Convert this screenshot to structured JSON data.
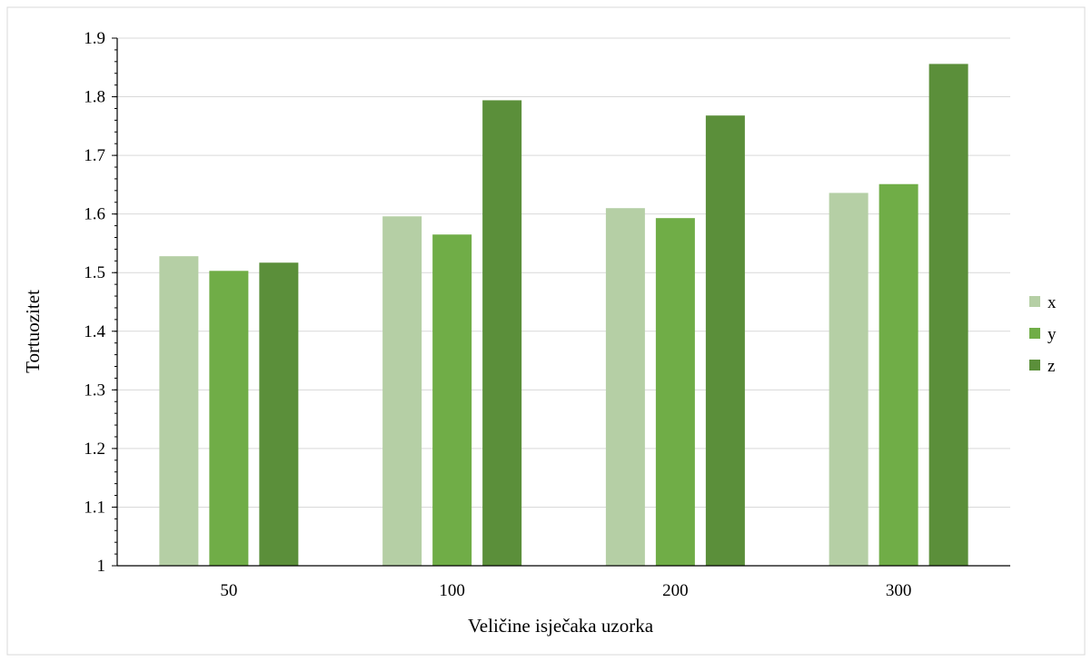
{
  "chart_data": {
    "type": "bar",
    "title": "",
    "xlabel": "Veličine isječaka uzorka",
    "ylabel": "Tortuozitet",
    "categories": [
      "50",
      "100",
      "200",
      "300"
    ],
    "series": [
      {
        "name": "x",
        "values": [
          1.528,
          1.596,
          1.61,
          1.636
        ],
        "color": "#b5cfa5"
      },
      {
        "name": "y",
        "values": [
          1.503,
          1.565,
          1.593,
          1.651
        ],
        "color": "#70ad47"
      },
      {
        "name": "z",
        "values": [
          1.517,
          1.794,
          1.768,
          1.856
        ],
        "color": "#5b8f3a"
      }
    ],
    "ylim": [
      1,
      1.9
    ],
    "yticks": [
      "1",
      "1.1",
      "1.2",
      "1.3",
      "1.4",
      "1.5",
      "1.6",
      "1.7",
      "1.8",
      "1.9"
    ],
    "grid": true,
    "legend_position": "right"
  }
}
